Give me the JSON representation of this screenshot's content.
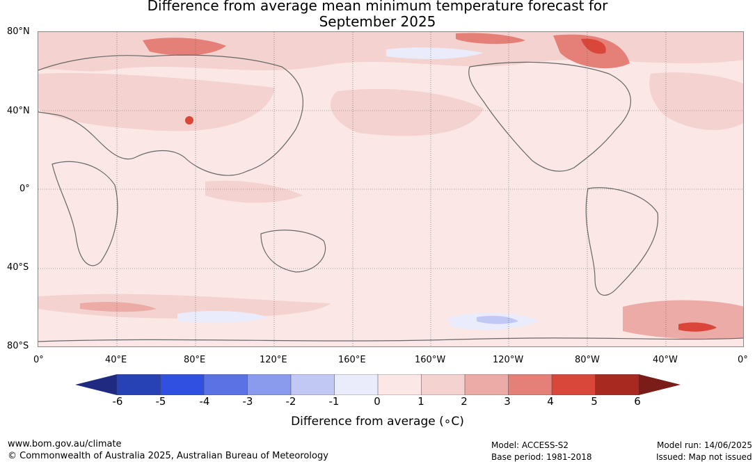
{
  "title": {
    "line1": "Difference from average mean minimum temperature forecast for",
    "line2": "September 2025"
  },
  "map": {
    "lat_labels": [
      "80°N",
      "40°N",
      "0°",
      "40°S",
      "80°S"
    ],
    "lon_labels": [
      "0°",
      "40°E",
      "80°E",
      "120°E",
      "160°E",
      "160°W",
      "120°W",
      "80°W",
      "40°W",
      "0°"
    ],
    "ocean_color": "#fbe8e6",
    "land_outline_color": "#666666"
  },
  "colorbar": {
    "ticks": [
      "-6",
      "-5",
      "-4",
      "-3",
      "-2",
      "-1",
      "0",
      "1",
      "2",
      "3",
      "4",
      "5",
      "6"
    ],
    "colors": [
      "#1f2a80",
      "#2642b5",
      "#2f50e0",
      "#5a72e4",
      "#8a9aec",
      "#c2c8f4",
      "#eaecfb",
      "#fbe8e6",
      "#f4d2cf",
      "#ecaba6",
      "#e58079",
      "#d9473b",
      "#a82920",
      "#7a1c17"
    ],
    "label": "Difference from average (∘C)"
  },
  "footer": {
    "website": "www.bom.gov.au/climate",
    "copyright": "© Commonwealth of Australia 2025, Australian Bureau of Meteorology",
    "model": "Model: ACCESS-S2",
    "base_period": "Base period: 1981-2018",
    "model_run": "Model run: 14/06/2025",
    "issued": "Issued: Map not issued"
  }
}
